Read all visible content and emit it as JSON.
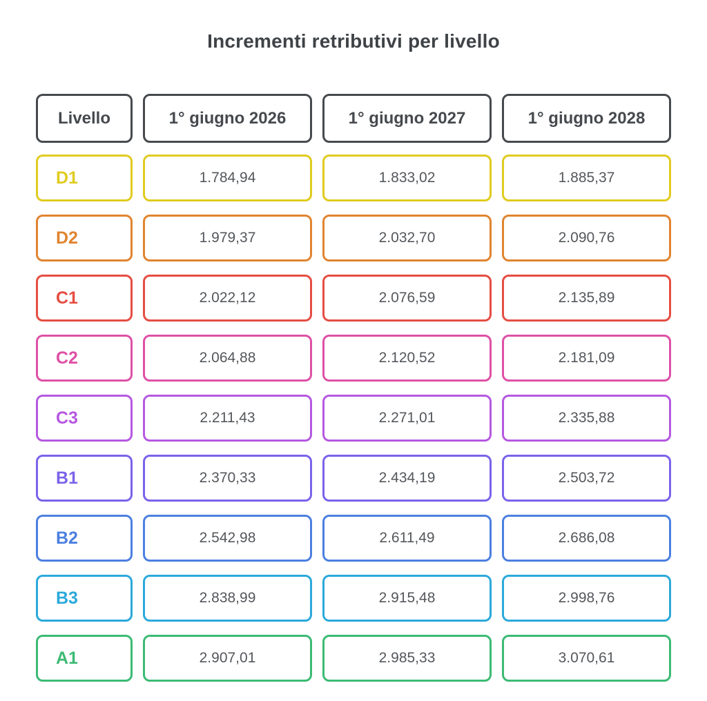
{
  "page": {
    "background": "#ffffff"
  },
  "colors": {
    "title_text": "#3f4347",
    "header_border": "#46494d",
    "header_text": "#46494d",
    "value_text": "#54575b"
  },
  "chart_data": {
    "type": "table",
    "title": "Incrementi retributivi per livello",
    "columns": [
      "Livello",
      "1° giugno 2026",
      "1° giugno 2027",
      "1° giugno 2028"
    ],
    "rows": [
      {
        "level": "D1",
        "color": "#e0cb1f",
        "values": [
          "1.784,94",
          "1.833,02",
          "1.885,37"
        ]
      },
      {
        "level": "D2",
        "color": "#e08430",
        "values": [
          "1.979,37",
          "2.032,70",
          "2.090,76"
        ]
      },
      {
        "level": "C1",
        "color": "#e54d42",
        "values": [
          "2.022,12",
          "2.076,59",
          "2.135,89"
        ]
      },
      {
        "level": "C2",
        "color": "#de50a6",
        "values": [
          "2.064,88",
          "2.120,52",
          "2.181,09"
        ]
      },
      {
        "level": "C3",
        "color": "#b558e0",
        "values": [
          "2.211,43",
          "2.271,01",
          "2.335,88"
        ]
      },
      {
        "level": "B1",
        "color": "#7b62ea",
        "values": [
          "2.370,33",
          "2.434,19",
          "2.503,72"
        ]
      },
      {
        "level": "B2",
        "color": "#4b7fe0",
        "values": [
          "2.542,98",
          "2.611,49",
          "2.686,08"
        ]
      },
      {
        "level": "B3",
        "color": "#2ba9da",
        "values": [
          "2.838,99",
          "2.915,48",
          "2.998,76"
        ]
      },
      {
        "level": "A1",
        "color": "#3cba74",
        "values": [
          "2.907,01",
          "2.985,33",
          "3.070,61"
        ]
      }
    ]
  }
}
